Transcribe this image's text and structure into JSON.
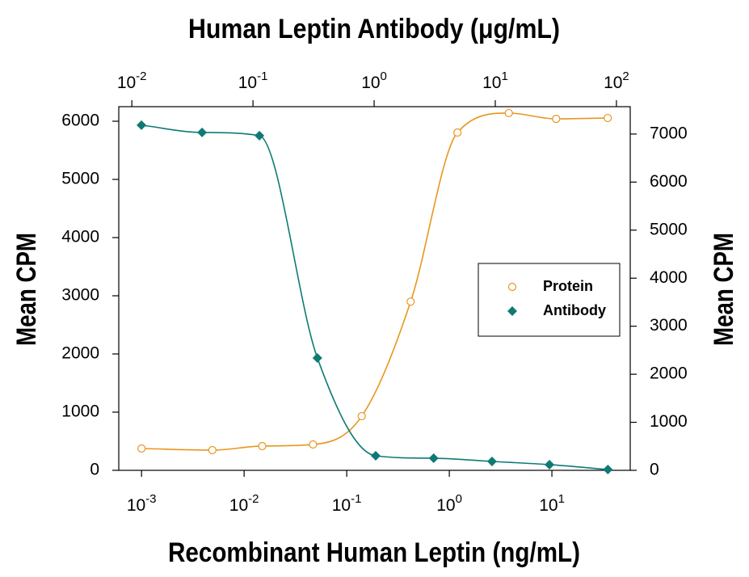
{
  "chart_data": {
    "type": "scatter",
    "x_label": "Recombinant Human Leptin (ng/mL)",
    "x2_label": "Human Leptin Antibody (μg/mL)",
    "y_label": "Mean CPM",
    "y2_label": "Mean CPM",
    "xscale": "log",
    "x2scale": "log",
    "xlim": [
      0.0006,
      58
    ],
    "x2lim": [
      0.0078,
      130
    ],
    "xticks": [
      {
        "value": 0.001,
        "label": "10",
        "exponent": "-3"
      },
      {
        "value": 0.01,
        "label": "10",
        "exponent": "-2"
      },
      {
        "value": 0.1,
        "label": "10",
        "exponent": "-1"
      },
      {
        "value": 1,
        "label": "10",
        "exponent": "0"
      },
      {
        "value": 10,
        "label": "10",
        "exponent": "1"
      }
    ],
    "x2ticks": [
      {
        "value": 0.01,
        "label": "10",
        "exponent": "-2"
      },
      {
        "value": 0.1,
        "label": "10",
        "exponent": "-1"
      },
      {
        "value": 1,
        "label": "10",
        "exponent": "0"
      },
      {
        "value": 10,
        "label": "10",
        "exponent": "1"
      },
      {
        "value": 100,
        "label": "10",
        "exponent": "2"
      }
    ],
    "ylim": [
      0,
      6250
    ],
    "yticks": [
      0,
      1000,
      2000,
      3000,
      4000,
      5000,
      6000
    ],
    "y2lim": [
      0,
      7570
    ],
    "y2ticks": [
      0,
      1000,
      2000,
      3000,
      4000,
      5000,
      6000,
      7000
    ],
    "legend": "right",
    "series": [
      {
        "name": "Protein",
        "color": "#e8961e",
        "marker": "open-circle",
        "x": [
          0.001,
          0.0049,
          0.015,
          0.047,
          0.14,
          0.42,
          1.2,
          3.8,
          11,
          35
        ],
        "values": [
          375,
          347,
          417,
          444,
          930,
          2900,
          5806,
          6140,
          6040,
          6055
        ]
      },
      {
        "name": "Antibody",
        "color": "#0f7a74",
        "marker": "diamond",
        "axis": "y2",
        "xaxis": "x2",
        "x": [
          0.012,
          0.038,
          0.113,
          0.34,
          1.03,
          3.1,
          9.4,
          28,
          85
        ],
        "values": [
          7185,
          7033,
          6966,
          2339,
          303,
          252,
          185,
          118,
          17
        ]
      }
    ]
  }
}
